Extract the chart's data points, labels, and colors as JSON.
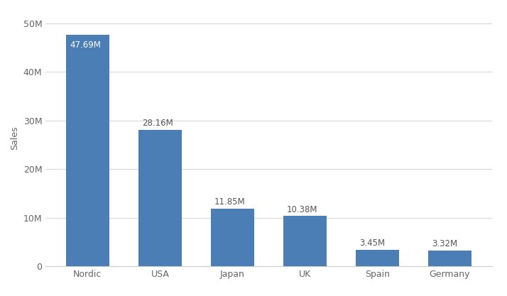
{
  "categories": [
    "Nordic",
    "USA",
    "Japan",
    "UK",
    "Spain",
    "Germany"
  ],
  "values": [
    47690000,
    28160000,
    11850000,
    10380000,
    3450000,
    3320000
  ],
  "labels": [
    "47.69M",
    "28.16M",
    "11.85M",
    "10.38M",
    "3.45M",
    "3.32M"
  ],
  "bar_color": "#4a7eb5",
  "background_color": "#ffffff",
  "ylabel": "Sales",
  "ylim": [
    0,
    53000000
  ],
  "yticks": [
    0,
    10000000,
    20000000,
    30000000,
    40000000,
    50000000
  ],
  "ytick_labels": [
    "0",
    "10M",
    "20M",
    "30M",
    "40M",
    "50M"
  ],
  "grid_color": "#d9d9d9",
  "label_fontsize": 8.5,
  "axis_fontsize": 9,
  "ylabel_fontsize": 9
}
